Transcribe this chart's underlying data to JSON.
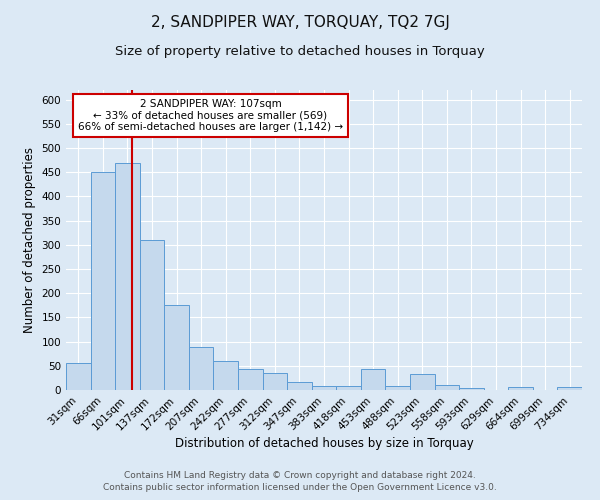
{
  "title": "2, SANDPIPER WAY, TORQUAY, TQ2 7GJ",
  "subtitle": "Size of property relative to detached houses in Torquay",
  "xlabel": "Distribution of detached houses by size in Torquay",
  "ylabel": "Number of detached properties",
  "categories": [
    "31sqm",
    "66sqm",
    "101sqm",
    "137sqm",
    "172sqm",
    "207sqm",
    "242sqm",
    "277sqm",
    "312sqm",
    "347sqm",
    "383sqm",
    "418sqm",
    "453sqm",
    "488sqm",
    "523sqm",
    "558sqm",
    "593sqm",
    "629sqm",
    "664sqm",
    "699sqm",
    "734sqm"
  ],
  "values": [
    55,
    450,
    470,
    310,
    175,
    88,
    60,
    43,
    35,
    17,
    8,
    8,
    43,
    8,
    33,
    10,
    5,
    0,
    7,
    0,
    7
  ],
  "bar_color": "#c5d9ed",
  "bar_edge_color": "#5b9bd5",
  "annotation_text": "2 SANDPIPER WAY: 107sqm\n← 33% of detached houses are smaller (569)\n66% of semi-detached houses are larger (1,142) →",
  "annotation_box_color": "#ffffff",
  "annotation_box_edge": "#cc0000",
  "ylim": [
    0,
    620
  ],
  "yticks": [
    0,
    50,
    100,
    150,
    200,
    250,
    300,
    350,
    400,
    450,
    500,
    550,
    600
  ],
  "footer1": "Contains HM Land Registry data © Crown copyright and database right 2024.",
  "footer2": "Contains public sector information licensed under the Open Government Licence v3.0.",
  "bg_color": "#dce9f5",
  "plot_bg_color": "#dce9f5",
  "grid_color": "#ffffff",
  "title_fontsize": 11,
  "subtitle_fontsize": 9.5,
  "label_fontsize": 8.5,
  "tick_fontsize": 7.5,
  "footer_fontsize": 6.5,
  "annot_fontsize": 7.5
}
